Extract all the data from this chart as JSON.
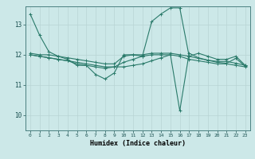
{
  "background_color": "#cce8e8",
  "grid_color": "#b8d4d4",
  "line_color": "#2a7a6a",
  "xlabel": "Humidex (Indice chaleur)",
  "xlim": [
    -0.5,
    23.5
  ],
  "ylim": [
    9.5,
    13.6
  ],
  "yticks": [
    10,
    11,
    12,
    13
  ],
  "xticks": [
    0,
    1,
    2,
    3,
    4,
    5,
    6,
    7,
    8,
    9,
    10,
    11,
    12,
    13,
    14,
    15,
    16,
    17,
    18,
    19,
    20,
    21,
    22,
    23
  ],
  "series": [
    {
      "x": [
        0,
        1,
        2,
        3,
        4,
        5,
        6,
        7,
        8,
        9,
        10,
        11,
        12,
        13,
        14,
        15,
        16,
        17,
        18,
        19,
        20,
        21,
        22,
        23
      ],
      "y": [
        13.35,
        12.65,
        12.1,
        11.95,
        11.85,
        11.65,
        11.65,
        11.35,
        11.2,
        11.4,
        12.0,
        12.0,
        11.95,
        13.1,
        13.35,
        13.55,
        13.55,
        11.95,
        12.05,
        11.95,
        11.85,
        11.85,
        11.95,
        11.65
      ]
    },
    {
      "x": [
        0,
        1,
        2,
        3,
        4,
        5,
        6,
        7,
        8,
        9,
        10,
        11,
        12,
        13,
        14,
        15,
        16,
        17,
        18,
        19,
        20,
        21,
        22,
        23
      ],
      "y": [
        12.05,
        12.0,
        12.0,
        11.95,
        11.9,
        11.85,
        11.8,
        11.75,
        11.7,
        11.7,
        11.95,
        12.0,
        12.0,
        12.05,
        12.05,
        12.05,
        12.0,
        11.95,
        11.88,
        11.82,
        11.78,
        11.78,
        11.72,
        11.65
      ]
    },
    {
      "x": [
        0,
        1,
        2,
        3,
        4,
        5,
        6,
        7,
        8,
        9,
        10,
        11,
        12,
        13,
        14,
        15,
        16,
        17,
        18,
        19,
        20,
        21,
        22,
        23
      ],
      "y": [
        12.0,
        11.95,
        11.9,
        11.85,
        11.8,
        11.75,
        11.7,
        11.65,
        11.6,
        11.6,
        11.6,
        11.65,
        11.7,
        11.8,
        11.9,
        12.0,
        10.15,
        12.05,
        11.9,
        11.82,
        11.75,
        11.72,
        11.88,
        11.62
      ]
    },
    {
      "x": [
        0,
        1,
        2,
        3,
        4,
        5,
        6,
        7,
        8,
        9,
        10,
        11,
        12,
        13,
        14,
        15,
        16,
        17,
        18,
        19,
        20,
        21,
        22,
        23
      ],
      "y": [
        12.0,
        11.95,
        11.9,
        11.85,
        11.8,
        11.7,
        11.65,
        11.6,
        11.55,
        11.6,
        11.75,
        11.85,
        11.95,
        12.0,
        12.0,
        12.0,
        11.95,
        11.85,
        11.8,
        11.75,
        11.7,
        11.7,
        11.65,
        11.6
      ]
    }
  ]
}
